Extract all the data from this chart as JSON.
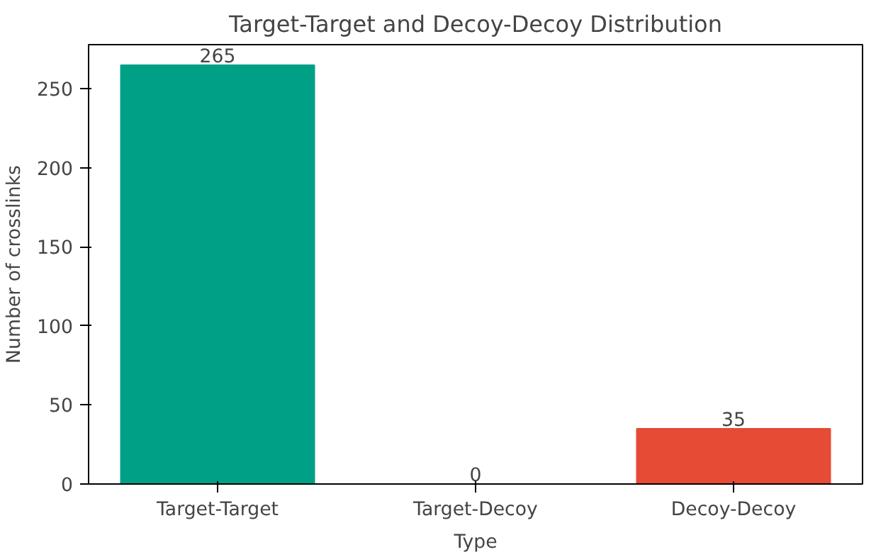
{
  "chart_data": {
    "type": "bar",
    "title": "Target-Target and Decoy-Decoy Distribution",
    "xlabel": "Type",
    "ylabel": "Number of crosslinks",
    "categories": [
      "Target-Target",
      "Target-Decoy",
      "Decoy-Decoy"
    ],
    "values": [
      265,
      0,
      35
    ],
    "colors": [
      "#00a087",
      "#3c5488",
      "#e64b35"
    ],
    "ylim": [
      0,
      278
    ],
    "yticks": [
      0,
      50,
      100,
      150,
      200,
      250
    ],
    "data_labels": true,
    "grid": false
  }
}
